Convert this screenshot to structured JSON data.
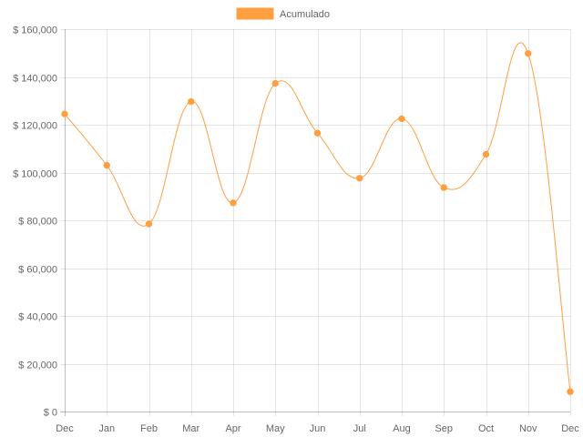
{
  "chart_data": {
    "type": "line",
    "title": "",
    "xlabel": "",
    "ylabel": "",
    "legend": {
      "position": "top",
      "entries": [
        "Acumulado"
      ]
    },
    "grid": true,
    "categories": [
      "Dec",
      "Jan",
      "Feb",
      "Mar",
      "Apr",
      "May",
      "Jun",
      "Jul",
      "Aug",
      "Sep",
      "Oct",
      "Nov",
      "Dec"
    ],
    "series": [
      {
        "name": "Acumulado",
        "color": "#ff9f40",
        "values": [
          124500,
          103000,
          78500,
          129700,
          87300,
          137300,
          116500,
          97600,
          122500,
          93700,
          107600,
          149800,
          8300
        ]
      }
    ],
    "ylim": [
      0,
      160000
    ],
    "yticks": [
      0,
      20000,
      40000,
      60000,
      80000,
      100000,
      120000,
      140000,
      160000
    ],
    "ytick_labels": [
      "$ 0",
      "$ 20,000",
      "$ 40,000",
      "$ 60,000",
      "$ 80,000",
      "$ 100,000",
      "$ 120,000",
      "$ 140,000",
      "$ 160,000"
    ]
  }
}
